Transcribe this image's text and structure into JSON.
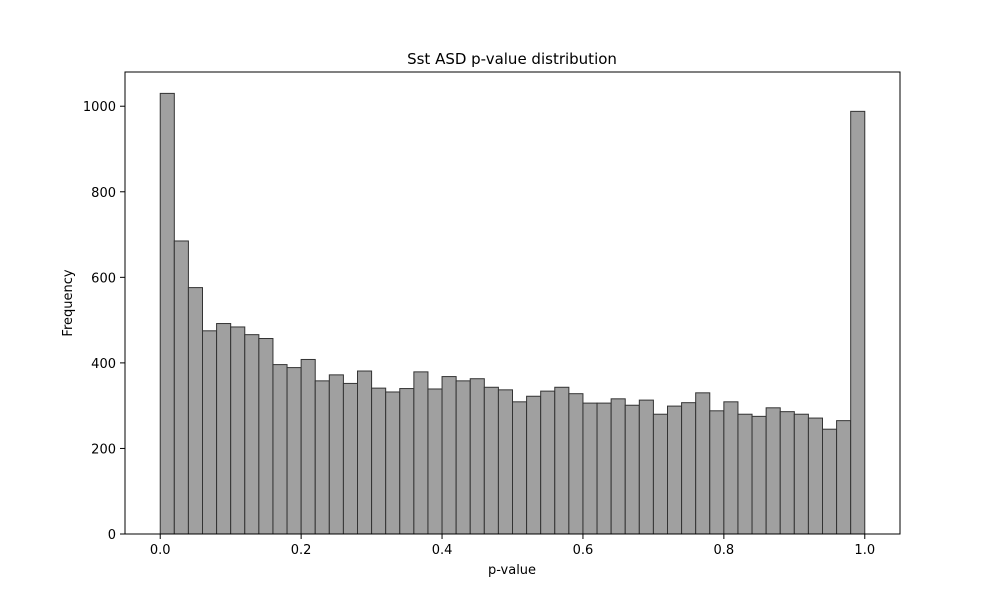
{
  "chart_data": {
    "type": "bar",
    "title": "Sst ASD p-value distribution",
    "xlabel": "p-value",
    "ylabel": "Frequency",
    "xlim": [
      -0.05,
      1.05
    ],
    "ylim": [
      0,
      1080
    ],
    "xticks": [
      0.0,
      0.2,
      0.4,
      0.6,
      0.8,
      1.0
    ],
    "xtick_labels": [
      "0.0",
      "0.2",
      "0.4",
      "0.6",
      "0.8",
      "1.0"
    ],
    "yticks": [
      0,
      200,
      400,
      600,
      800,
      1000
    ],
    "ytick_labels": [
      "0",
      "200",
      "400",
      "600",
      "800",
      "1000"
    ],
    "bin_start": 0.0,
    "bin_width": 0.02,
    "values": [
      1030,
      685,
      576,
      475,
      492,
      484,
      466,
      457,
      396,
      389,
      408,
      358,
      372,
      352,
      381,
      341,
      332,
      340,
      379,
      339,
      368,
      358,
      363,
      343,
      337,
      309,
      322,
      334,
      343,
      328,
      306,
      306,
      316,
      301,
      313,
      280,
      299,
      307,
      330,
      288,
      309,
      280,
      275,
      295,
      286,
      280,
      271,
      245,
      265,
      988
    ],
    "bar_color": "#a0a0a0",
    "edge_color": "#333333",
    "grid": false,
    "legend": "none"
  }
}
